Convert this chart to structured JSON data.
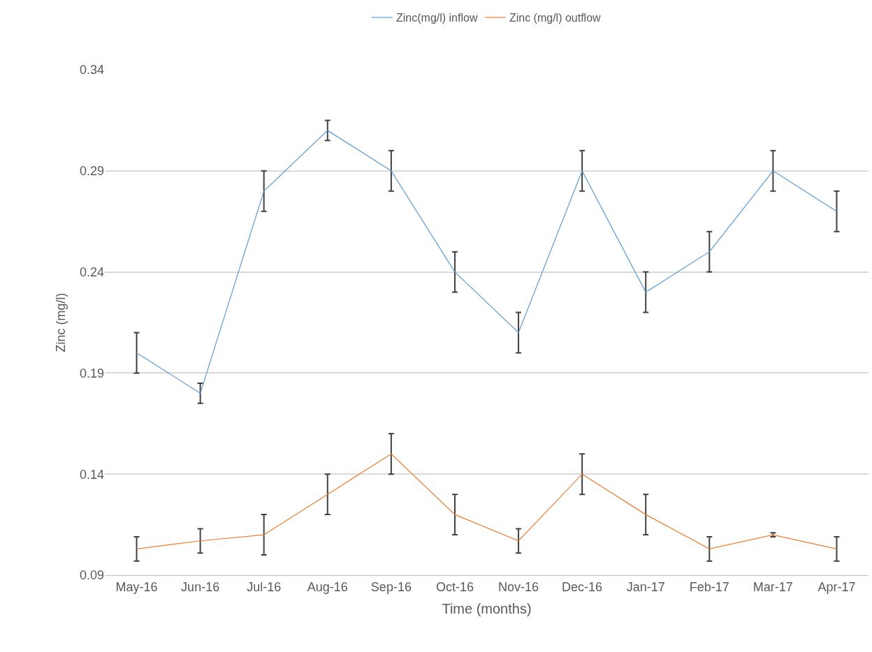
{
  "chart_data": {
    "type": "line",
    "xlabel": "Time (months)",
    "ylabel": "Zinc (mg/l)",
    "categories": [
      "May-16",
      "Jun-16",
      "Jul-16",
      "Aug-16",
      "Sep-16",
      "Oct-16",
      "Nov-16",
      "Dec-16",
      "Jan-17",
      "Feb-17",
      "Mar-17",
      "Apr-17"
    ],
    "series": [
      {
        "name": "Zinc(mg/l) inflow",
        "color": "#5b9bd5",
        "values": [
          0.2,
          0.18,
          0.28,
          0.31,
          0.29,
          0.24,
          0.21,
          0.29,
          0.23,
          0.25,
          0.29,
          0.27
        ],
        "errors": [
          0.01,
          0.005,
          0.01,
          0.005,
          0.01,
          0.01,
          0.01,
          0.01,
          0.01,
          0.01,
          0.01,
          0.01
        ]
      },
      {
        "name": "Zinc (mg/l) outflow",
        "color": "#ed7d31",
        "values": [
          0.103,
          0.107,
          0.11,
          0.13,
          0.15,
          0.12,
          0.107,
          0.14,
          0.12,
          0.103,
          0.11,
          0.103
        ],
        "errors": [
          0.006,
          0.006,
          0.01,
          0.01,
          0.01,
          0.01,
          0.006,
          0.01,
          0.01,
          0.006,
          0.001,
          0.006
        ]
      }
    ],
    "ylim": [
      0.09,
      0.34
    ],
    "yticks": [
      0.09,
      0.14,
      0.19,
      0.24,
      0.29,
      0.34
    ],
    "grid": "y",
    "legend": "top",
    "marker": "none",
    "line_style": "solid"
  }
}
